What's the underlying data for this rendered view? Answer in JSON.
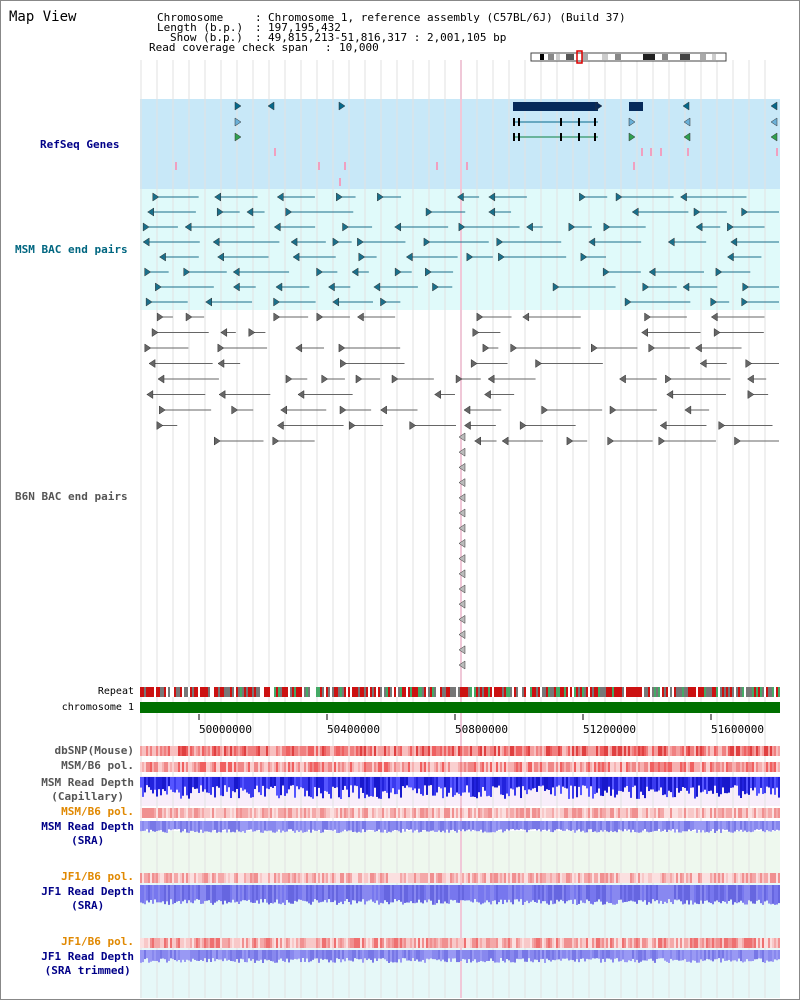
{
  "title": "Map View",
  "header": {
    "chromosome_key": "Chromosome",
    "chromosome_val": "Chromosome 1, reference assembly (C57BL/6J) (Build 37)",
    "length_key": "Length (b.p.)",
    "length_val": "197,195,432",
    "show_key": "Show (b.p.)",
    "show_val": "49,815,213-51,816,317 : 2,001,105 bp",
    "span_key": "Read coverage check span",
    "span_val": "10,000"
  },
  "tracks": {
    "refseq": "RefSeq Genes",
    "msm_bac": "MSM BAC end pairs",
    "b6n_bac": "B6N BAC end pairs",
    "repeat": "Repeat",
    "chromosome": "chromosome 1",
    "dbsnp": "dbSNP(Mouse)",
    "msm_b6_pol": "MSM/B6 pol.",
    "msm_depth_cap_1": "MSM Read Depth",
    "msm_depth_cap_2": "(Capillary)",
    "msm_b6_pol_2": "MSM/B6 pol.",
    "msm_depth_sra_1": "MSM Read Depth",
    "msm_depth_sra_2": "(SRA)",
    "jf1_b6_pol": "JF1/B6 pol.",
    "jf1_depth_sra_1": "JF1 Read Depth",
    "jf1_depth_sra_2": "(SRA)",
    "jf1_b6_pol_2": "JF1/B6 pol.",
    "jf1_depth_trim_1": "JF1 Read Depth",
    "jf1_depth_trim_2": "(SRA trimmed)"
  },
  "axis": {
    "ticks": [
      "50000000",
      "50400000",
      "50800000",
      "51200000",
      "51600000"
    ]
  },
  "colors": {
    "refseq_bg": "#c8e8f8",
    "msm_bg": "#e0fafa",
    "refseq_label": "#000088",
    "msm_label": "#006680",
    "b6n_label": "#555555",
    "pol_label": "#e08800",
    "depth_label": "#000088",
    "chromosome_green": "#007000"
  }
}
